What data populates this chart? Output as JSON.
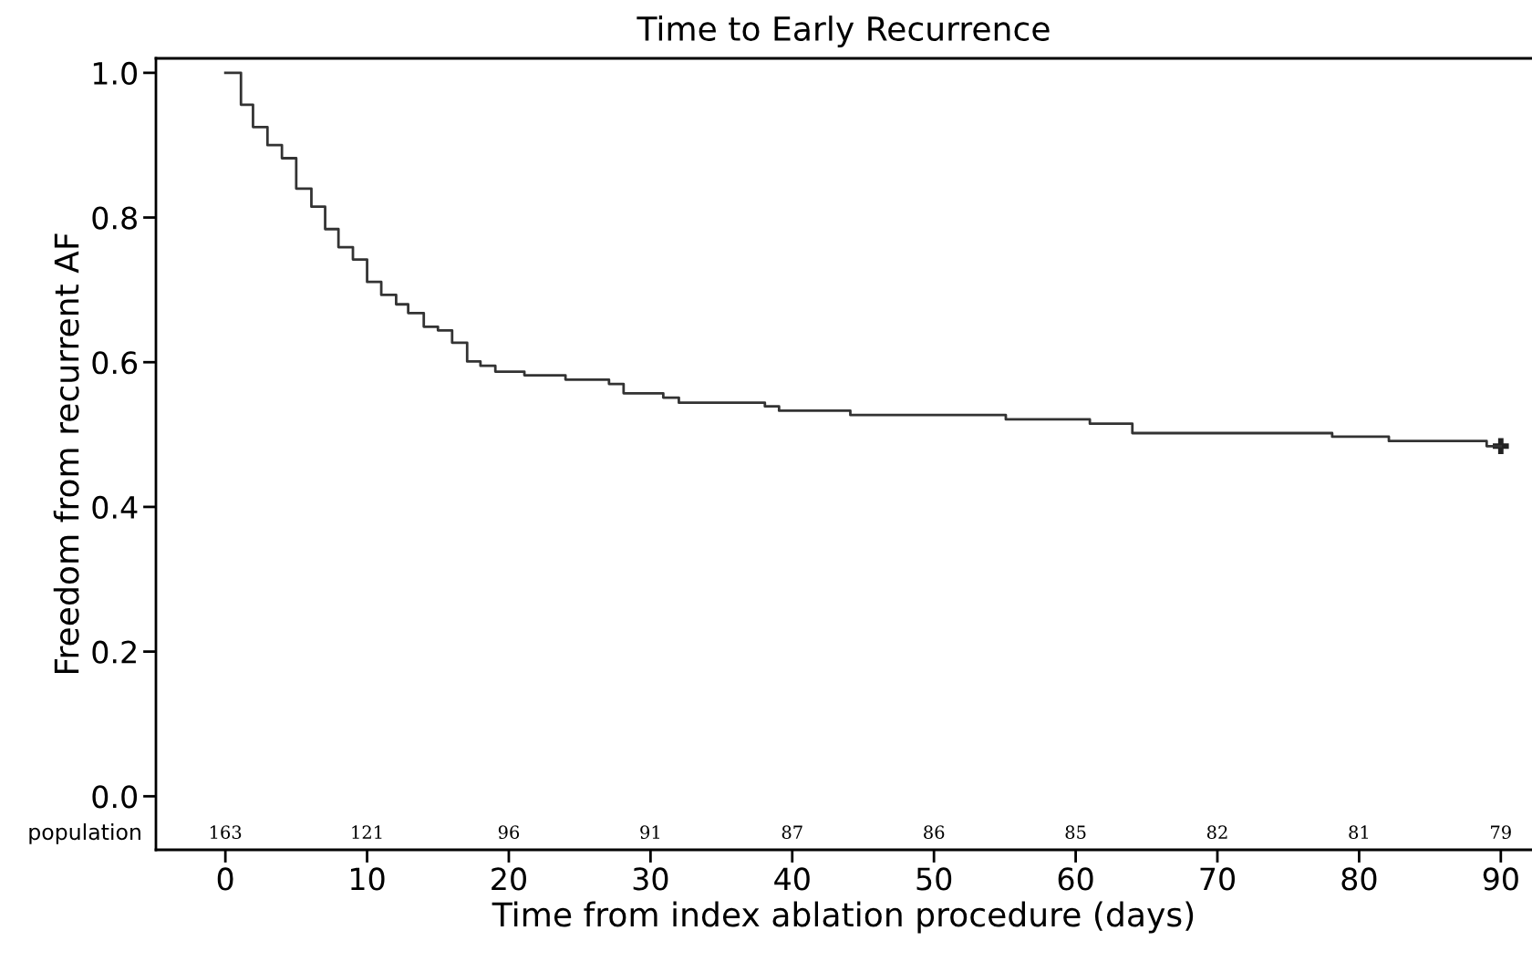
{
  "chart_data": {
    "type": "step",
    "title": "Time to Early Recurrence",
    "xlabel": "Time from index ablation procedure (days)",
    "ylabel": "Freedom from recurrent AF",
    "xlim": [
      -4.9,
      92.2
    ],
    "ylim": [
      -0.074,
      1.02
    ],
    "xticks": [
      0,
      10,
      20,
      30,
      40,
      50,
      60,
      70,
      80,
      90
    ],
    "yticks": [
      {
        "value": 0,
        "label": "0.0"
      },
      0.2,
      0.4,
      0.6,
      0.8,
      {
        "value": 1,
        "label": "1.0"
      }
    ],
    "grid": false,
    "legend": false,
    "series": [
      {
        "color": "#333333",
        "marker": "none",
        "x": [
          0,
          1.1,
          1.95,
          2.97,
          3.99,
          5.0,
          6.07,
          7.04,
          7.98,
          9.0,
          10.0,
          11.0,
          12.05,
          12.9,
          14.0,
          15.0,
          16.0,
          17.06,
          18.0,
          19.05,
          21.1,
          24.0,
          27.07,
          28.1,
          30.9,
          32.0,
          38.07,
          39.07,
          44.1,
          55.07,
          61.0,
          64.0,
          78.1,
          82.1,
          89.0,
          90
        ],
        "values": [
          1.0,
          0.956,
          0.925,
          0.9,
          0.882,
          0.84,
          0.815,
          0.784,
          0.759,
          0.742,
          0.711,
          0.693,
          0.68,
          0.668,
          0.649,
          0.644,
          0.627,
          0.601,
          0.595,
          0.587,
          0.582,
          0.576,
          0.57,
          0.557,
          0.551,
          0.544,
          0.539,
          0.533,
          0.527,
          0.521,
          0.515,
          0.502,
          0.497,
          0.491,
          0.484,
          0.484
        ]
      },
      {
        "type": "scatter",
        "color": "#222222",
        "marker": "cross",
        "x": [
          90
        ],
        "values": [
          0.484
        ]
      }
    ],
    "annotations": [
      "population",
      "163",
      "121",
      "96",
      "91",
      "87",
      "86",
      "85",
      "82",
      "81",
      "79"
    ]
  }
}
